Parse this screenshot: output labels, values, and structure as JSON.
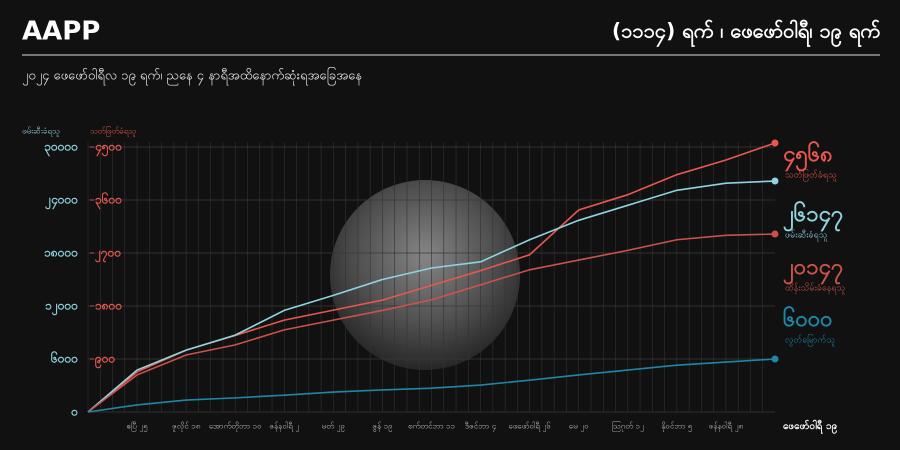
{
  "chart_data": {
    "type": "line",
    "brand": "AAPP",
    "title": "(၁၁၁၄) ရက် ၊ ဖေဖော်ဝါရီ၊ ၁၉ ရက်",
    "subtitle": "၂၀၂၄ ဖေဖော်ဝါရီလ ၁၉ ရက်၊ ညနေ ၄ နာရီအထိနောက်ဆုံးရအခြေအနေ",
    "ylabel": "ဖမ်းဆီးခံရသူ",
    "y2label": "သတ်ဖြတ်ခံရသူ",
    "categories": [
      null,
      "ဧပြီ ၂၅",
      "ဇူလိုင် ၁၈",
      "အောက်တိုဘာ ၁၀",
      "ဇန်နဝါရီ ၂",
      "မတ် ၂၉",
      "ဇွန် ၁၉",
      "စက်တင်ဘာ ၁၁",
      "ဒီဇင်ဘာ ၄",
      "ဖေဖော်ဝါရီ ၂၆",
      "မေ ၂၀",
      "ဩဂုတ် ၁၂",
      "နိုဝင်ဘာ ၅",
      "ဇန်နဝါရီ ၂၈",
      "ဖေဖော်ဝါရီ ၁၉"
    ],
    "ylim": [
      0,
      30000
    ],
    "yticks": [
      {
        "value": 0,
        "label": "၀"
      },
      {
        "value": 6000,
        "label": "၆၀၀၀"
      },
      {
        "value": 12000,
        "label": "၁၂၀၀၀"
      },
      {
        "value": 18000,
        "label": "၁၈၀၀၀"
      },
      {
        "value": 24000,
        "label": "၂၄၀၀၀"
      },
      {
        "value": 30000,
        "label": "၃၀၀၀၀"
      }
    ],
    "y2lim": [
      0,
      4500
    ],
    "y2ticks": [
      {
        "value": 900,
        "label": "၉၀၀"
      },
      {
        "value": 1800,
        "label": "၁၈၀၀"
      },
      {
        "value": 2700,
        "label": "၂၇၀၀"
      },
      {
        "value": 3600,
        "label": "၃၆၀၀"
      },
      {
        "value": 4500,
        "label": "၄၅၀၀"
      }
    ],
    "grid": true,
    "series": [
      {
        "name": "သတ်ဖြတ်ခံရသူ",
        "color": "#e8574f",
        "axis": "y2",
        "values": [
          0,
          680,
          1050,
          1300,
          1560,
          1730,
          1900,
          2150,
          2400,
          2670,
          3430,
          3690,
          4030,
          4280,
          4568
        ],
        "value_labels": [
          null,
          null,
          null,
          null,
          null,
          null,
          null,
          null,
          null,
          null,
          null,
          null,
          null,
          null,
          "၄၅၆၈"
        ]
      },
      {
        "name": "ဖမ်းဆီးခံရသူ",
        "color": "#8fd3e0",
        "values": [
          0,
          4750,
          7000,
          8700,
          11500,
          13200,
          15000,
          16300,
          17000,
          19500,
          21700,
          23400,
          25100,
          25900,
          26147
        ],
        "value_labels": [
          null,
          null,
          null,
          null,
          null,
          null,
          null,
          null,
          null,
          null,
          null,
          null,
          null,
          null,
          "၂၆၁၄၇"
        ]
      },
      {
        "name": "ထိန်းသိမ်းခံနေရသူ",
        "color": "#c9524c",
        "values": [
          0,
          4200,
          6450,
          7600,
          9300,
          10400,
          11500,
          12700,
          14400,
          16100,
          17200,
          18300,
          19500,
          20000,
          20147
        ],
        "value_labels": [
          null,
          null,
          null,
          null,
          null,
          null,
          null,
          null,
          null,
          null,
          null,
          null,
          null,
          null,
          "၂၀၁၄၇"
        ]
      },
      {
        "name": "လွတ်မြောက်သူ",
        "color": "#1f86a8",
        "values": [
          0,
          800,
          1350,
          1600,
          1900,
          2260,
          2500,
          2700,
          3050,
          3600,
          4200,
          4750,
          5300,
          5650,
          6000
        ],
        "value_labels": [
          null,
          null,
          null,
          null,
          null,
          null,
          null,
          null,
          null,
          null,
          null,
          null,
          null,
          null,
          "၆၀၀၀"
        ]
      }
    ]
  }
}
